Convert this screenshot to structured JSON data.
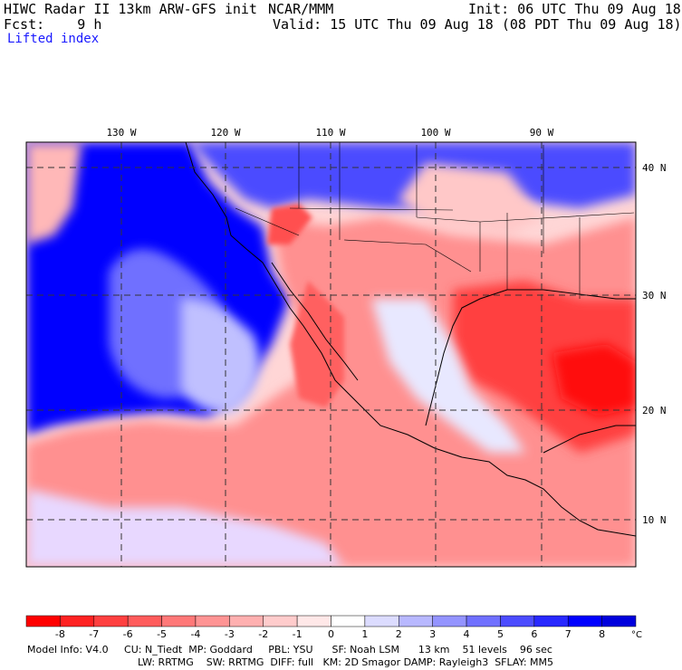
{
  "header": {
    "left_line1": "HIWC Radar II 13km ARW-GFS init",
    "left_line2": "Fcst:    9 h",
    "center_line1": "NCAR/MMM",
    "right_line1": "Init: 06 UTC Thu 09 Aug 18",
    "right_line2": "Valid: 15 UTC Thu 09 Aug 18 (08 PDT Thu 09 Aug 18)",
    "field_name": "Lifted index"
  },
  "map": {
    "lon_labels": [
      "130 W",
      "120 W",
      "110 W",
      "100 W",
      "90 W"
    ],
    "lat_labels": [
      "40 N",
      "30 N",
      "20 N",
      "10 N"
    ]
  },
  "colorbar": {
    "labels": [
      "-8",
      "-7",
      "-6",
      "-5",
      "-4",
      "-3",
      "-2",
      "-1",
      "0",
      "1",
      "2",
      "3",
      "4",
      "5",
      "6",
      "7",
      "8"
    ],
    "unit": "°C",
    "colors": [
      "#ff0000",
      "#ff2222",
      "#ff4040",
      "#ff5c5c",
      "#ff7878",
      "#ff9494",
      "#ffb0b0",
      "#ffcccc",
      "#ffe8e8",
      "#ffffff",
      "#dcdcff",
      "#b8b8ff",
      "#9494ff",
      "#7070ff",
      "#4c4cff",
      "#2828ff",
      "#0000ff",
      "#0000dd"
    ]
  },
  "model_info": {
    "line1": "Model Info: V4.0     CU: N_Tiedt  MP: Goddard     PBL: YSU      SF: Noah LSM      13 km    51 levels    96 sec",
    "line2": "LW: RRTMG    SW: RRTMG  DIFF: full   KM: 2D Smagor DAMP: Rayleigh3  SFLAY: MM5"
  }
}
